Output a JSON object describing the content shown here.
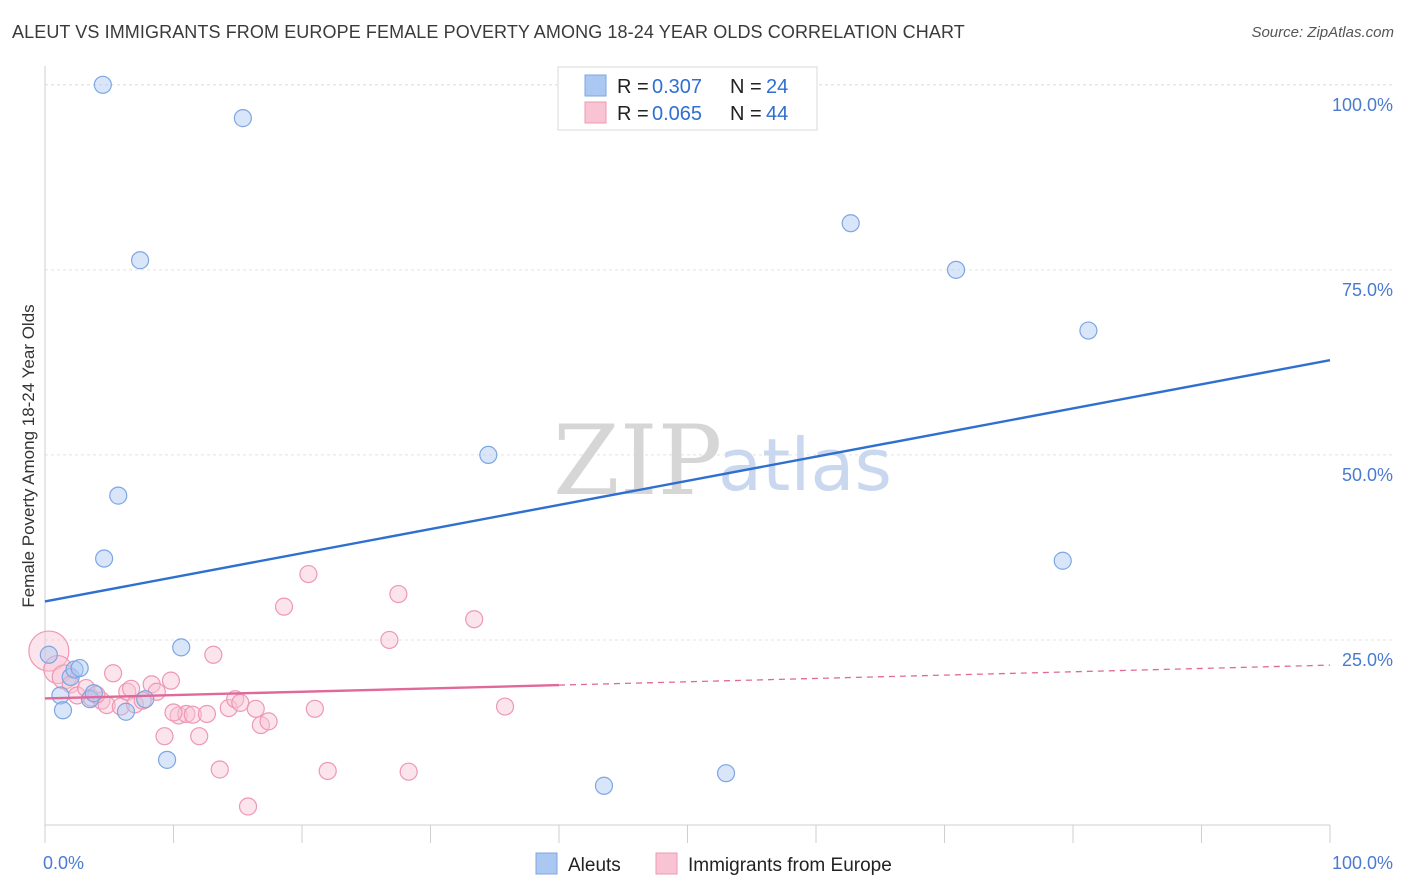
{
  "header": {
    "title": "ALEUT VS IMMIGRANTS FROM EUROPE FEMALE POVERTY AMONG 18-24 YEAR OLDS CORRELATION CHART",
    "source": "Source: ZipAtlas.com"
  },
  "watermark": {
    "zip": "ZIP",
    "atlas": "atlas"
  },
  "legend": {
    "rows": [
      {
        "r_label": "R = ",
        "r_value": "0.307",
        "n_label": "N = ",
        "n_value": "24",
        "color": "#aac8f2",
        "stroke": "#7da6e3"
      },
      {
        "r_label": "R = ",
        "r_value": "0.065",
        "n_label": "N = ",
        "n_value": "44",
        "color": "#f8c4d4",
        "stroke": "#ee98b3"
      }
    ]
  },
  "bottom_legend": {
    "items": [
      {
        "label": "Aleuts",
        "color": "#aac8f2",
        "stroke": "#7da6e3"
      },
      {
        "label": "Immigrants from Europe",
        "color": "#f8c4d4",
        "stroke": "#ee98b3"
      }
    ]
  },
  "chart_data": {
    "type": "scatter",
    "title": "ALEUT VS IMMIGRANTS FROM EUROPE FEMALE POVERTY AMONG 18-24 YEAR OLDS CORRELATION CHART",
    "xlabel": "",
    "ylabel": "Female Poverty Among 18-24 Year Olds",
    "xlim": [
      0,
      100
    ],
    "ylim": [
      0,
      102
    ],
    "x_tick_labels": [
      "0.0%",
      "100.0%"
    ],
    "y_ticks": [
      25,
      50,
      75,
      100
    ],
    "y_tick_labels": [
      "25.0%",
      "50.0%",
      "75.0%",
      "100.0%"
    ],
    "grid": true,
    "series": [
      {
        "name": "Aleuts",
        "color": "#aac8f2",
        "stroke": "#7da6e3",
        "line_color": "#2e6fd0",
        "trend": {
          "x": [
            0,
            100
          ],
          "y": [
            30.2,
            62.8
          ],
          "solid_until": 100
        },
        "points": [
          {
            "x": 4.5,
            "y": 100.0
          },
          {
            "x": 15.4,
            "y": 95.5
          },
          {
            "x": 7.4,
            "y": 76.3
          },
          {
            "x": 0.3,
            "y": 23.0
          },
          {
            "x": 1.2,
            "y": 17.5
          },
          {
            "x": 1.4,
            "y": 15.5
          },
          {
            "x": 2.0,
            "y": 20.0
          },
          {
            "x": 2.3,
            "y": 21.0
          },
          {
            "x": 2.7,
            "y": 21.2
          },
          {
            "x": 3.5,
            "y": 17.0
          },
          {
            "x": 3.8,
            "y": 17.8
          },
          {
            "x": 5.7,
            "y": 44.5
          },
          {
            "x": 4.6,
            "y": 36.0
          },
          {
            "x": 6.3,
            "y": 15.3
          },
          {
            "x": 7.8,
            "y": 17.0
          },
          {
            "x": 9.5,
            "y": 8.8
          },
          {
            "x": 10.6,
            "y": 24.0
          },
          {
            "x": 34.5,
            "y": 50.0
          },
          {
            "x": 43.5,
            "y": 5.3
          },
          {
            "x": 53.0,
            "y": 7.0
          },
          {
            "x": 62.7,
            "y": 81.3
          },
          {
            "x": 70.9,
            "y": 75.0
          },
          {
            "x": 79.2,
            "y": 35.7
          },
          {
            "x": 81.2,
            "y": 66.8
          }
        ]
      },
      {
        "name": "Immigrants from Europe",
        "color": "#f8c4d4",
        "stroke": "#ee98b3",
        "line_color": "#e0699a",
        "trend": {
          "x": [
            0,
            100
          ],
          "y": [
            17.1,
            21.6
          ],
          "solid_until": 40
        },
        "points": [
          {
            "x": 0.3,
            "y": 23.5,
            "r": 20
          },
          {
            "x": 1.0,
            "y": 21.0,
            "r": 14
          },
          {
            "x": 1.5,
            "y": 20.0,
            "r": 12
          },
          {
            "x": 2.0,
            "y": 19.0
          },
          {
            "x": 2.5,
            "y": 17.5
          },
          {
            "x": 3.2,
            "y": 18.5
          },
          {
            "x": 3.6,
            "y": 17.2
          },
          {
            "x": 4.4,
            "y": 16.8
          },
          {
            "x": 4.8,
            "y": 16.2
          },
          {
            "x": 5.3,
            "y": 20.5
          },
          {
            "x": 5.9,
            "y": 16.0
          },
          {
            "x": 6.4,
            "y": 18.0
          },
          {
            "x": 7.0,
            "y": 16.3
          },
          {
            "x": 7.6,
            "y": 16.8
          },
          {
            "x": 8.3,
            "y": 19.0
          },
          {
            "x": 8.7,
            "y": 18.0
          },
          {
            "x": 9.3,
            "y": 12.0
          },
          {
            "x": 9.8,
            "y": 19.5
          },
          {
            "x": 10.4,
            "y": 14.8
          },
          {
            "x": 11.0,
            "y": 15.0
          },
          {
            "x": 11.5,
            "y": 14.9
          },
          {
            "x": 12.0,
            "y": 12.0
          },
          {
            "x": 12.6,
            "y": 15.0
          },
          {
            "x": 13.1,
            "y": 23.0
          },
          {
            "x": 13.6,
            "y": 7.5
          },
          {
            "x": 14.3,
            "y": 15.8
          },
          {
            "x": 14.8,
            "y": 17.0
          },
          {
            "x": 15.2,
            "y": 16.5
          },
          {
            "x": 15.8,
            "y": 2.5
          },
          {
            "x": 16.4,
            "y": 15.7
          },
          {
            "x": 16.8,
            "y": 13.5
          },
          {
            "x": 17.4,
            "y": 14.0
          },
          {
            "x": 18.6,
            "y": 29.5
          },
          {
            "x": 20.5,
            "y": 33.9
          },
          {
            "x": 21.0,
            "y": 15.7
          },
          {
            "x": 22.0,
            "y": 7.3
          },
          {
            "x": 26.8,
            "y": 25.0
          },
          {
            "x": 27.5,
            "y": 31.2
          },
          {
            "x": 28.3,
            "y": 7.2
          },
          {
            "x": 33.4,
            "y": 27.8
          },
          {
            "x": 35.8,
            "y": 16.0
          },
          {
            "x": 6.7,
            "y": 18.4
          },
          {
            "x": 4.0,
            "y": 17.6
          },
          {
            "x": 10.0,
            "y": 15.2
          }
        ]
      }
    ]
  }
}
